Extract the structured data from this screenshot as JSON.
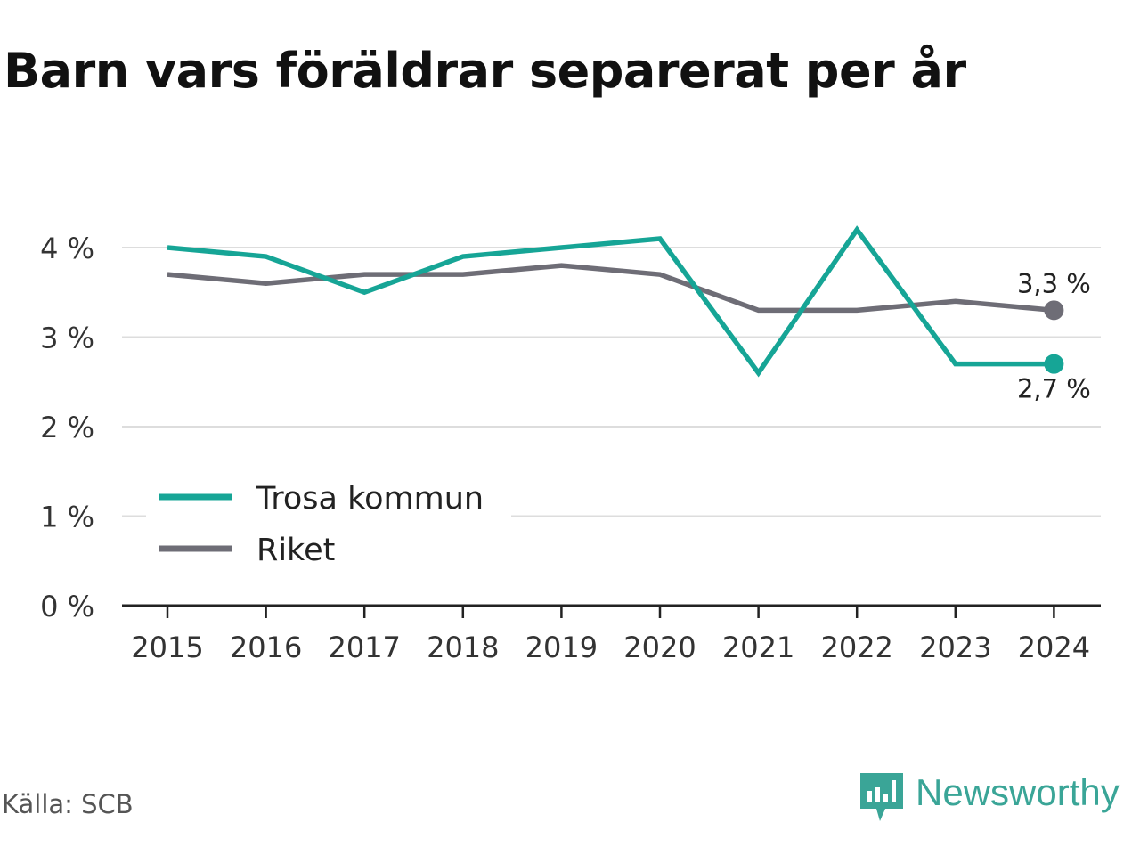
{
  "page": {
    "title": "Barn vars föräldrar separerat per år",
    "source": "Källa: SCB",
    "brand": "Newsworthy"
  },
  "colors": {
    "series_trosa": "#16a596",
    "series_riket": "#6e6d76",
    "grid": "#dddddd",
    "axis": "#222222",
    "brand": "#3aa597"
  },
  "icons": {
    "brand_logo": "newsworthy-logo-icon"
  },
  "chart_data": {
    "type": "line",
    "title": "Barn vars föräldrar separerat per år",
    "xlabel": "",
    "ylabel": "",
    "categories": [
      "2015",
      "2016",
      "2017",
      "2018",
      "2019",
      "2020",
      "2021",
      "2022",
      "2023",
      "2024"
    ],
    "y_tick_values": [
      0,
      1,
      2,
      3,
      4
    ],
    "y_tick_labels": [
      "0 %",
      "1 %",
      "2 %",
      "3 %",
      "4 %"
    ],
    "ylim": [
      0,
      4.3
    ],
    "grid": true,
    "legend_position": "bottom-left",
    "series": [
      {
        "name": "Trosa kommun",
        "values": [
          4.0,
          3.9,
          3.5,
          3.9,
          4.0,
          4.1,
          2.6,
          4.2,
          2.7,
          2.7
        ],
        "end_label": "2,7 %"
      },
      {
        "name": "Riket",
        "values": [
          3.7,
          3.6,
          3.7,
          3.7,
          3.8,
          3.7,
          3.3,
          3.3,
          3.4,
          3.3
        ],
        "end_label": "3,3 %"
      }
    ]
  }
}
